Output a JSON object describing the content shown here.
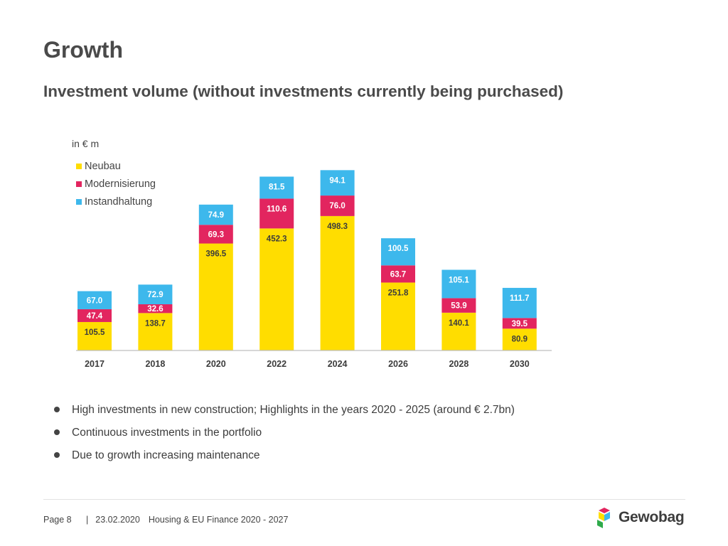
{
  "page": {
    "title": "Growth",
    "subtitle": "Investment volume (without investments currently being purchased)"
  },
  "chart_data": {
    "type": "bar",
    "stacked": true,
    "unit_label": "in € m",
    "categories": [
      "2017",
      "2018",
      "2020",
      "2022",
      "2024",
      "2026",
      "2028",
      "2030"
    ],
    "series": [
      {
        "name": "Neubau",
        "color": "#ffdd00",
        "text_color": "#3c3c3c",
        "values": [
          105.5,
          138.7,
          396.5,
          452.3,
          498.3,
          251.8,
          140.1,
          80.9
        ]
      },
      {
        "name": "Modernisierung",
        "color": "#e2255f",
        "text_color": "#ffffff",
        "values": [
          47.4,
          32.6,
          69.3,
          110.6,
          76.0,
          63.7,
          53.9,
          39.5
        ]
      },
      {
        "name": "Instandhaltung",
        "color": "#3db8ec",
        "text_color": "#ffffff",
        "values": [
          67.0,
          72.9,
          74.9,
          81.5,
          94.1,
          100.5,
          105.1,
          111.7
        ]
      }
    ],
    "legend_position": "top-left",
    "grid": false
  },
  "bullets": [
    "High investments in new construction; Highlights in the years 2020 - 2025 (around € 2.7bn)",
    "Continuous investments in the portfolio",
    "Due to growth increasing maintenance"
  ],
  "footer": {
    "page": "Page 8",
    "separator": "|",
    "date": "23.02.2020",
    "event": "Housing & EU Finance 2020 - 2027"
  },
  "logo": {
    "text": "Gewobag",
    "colors": [
      "#e2255f",
      "#ffdd00",
      "#3db8ec",
      "#2eaa4a"
    ]
  }
}
